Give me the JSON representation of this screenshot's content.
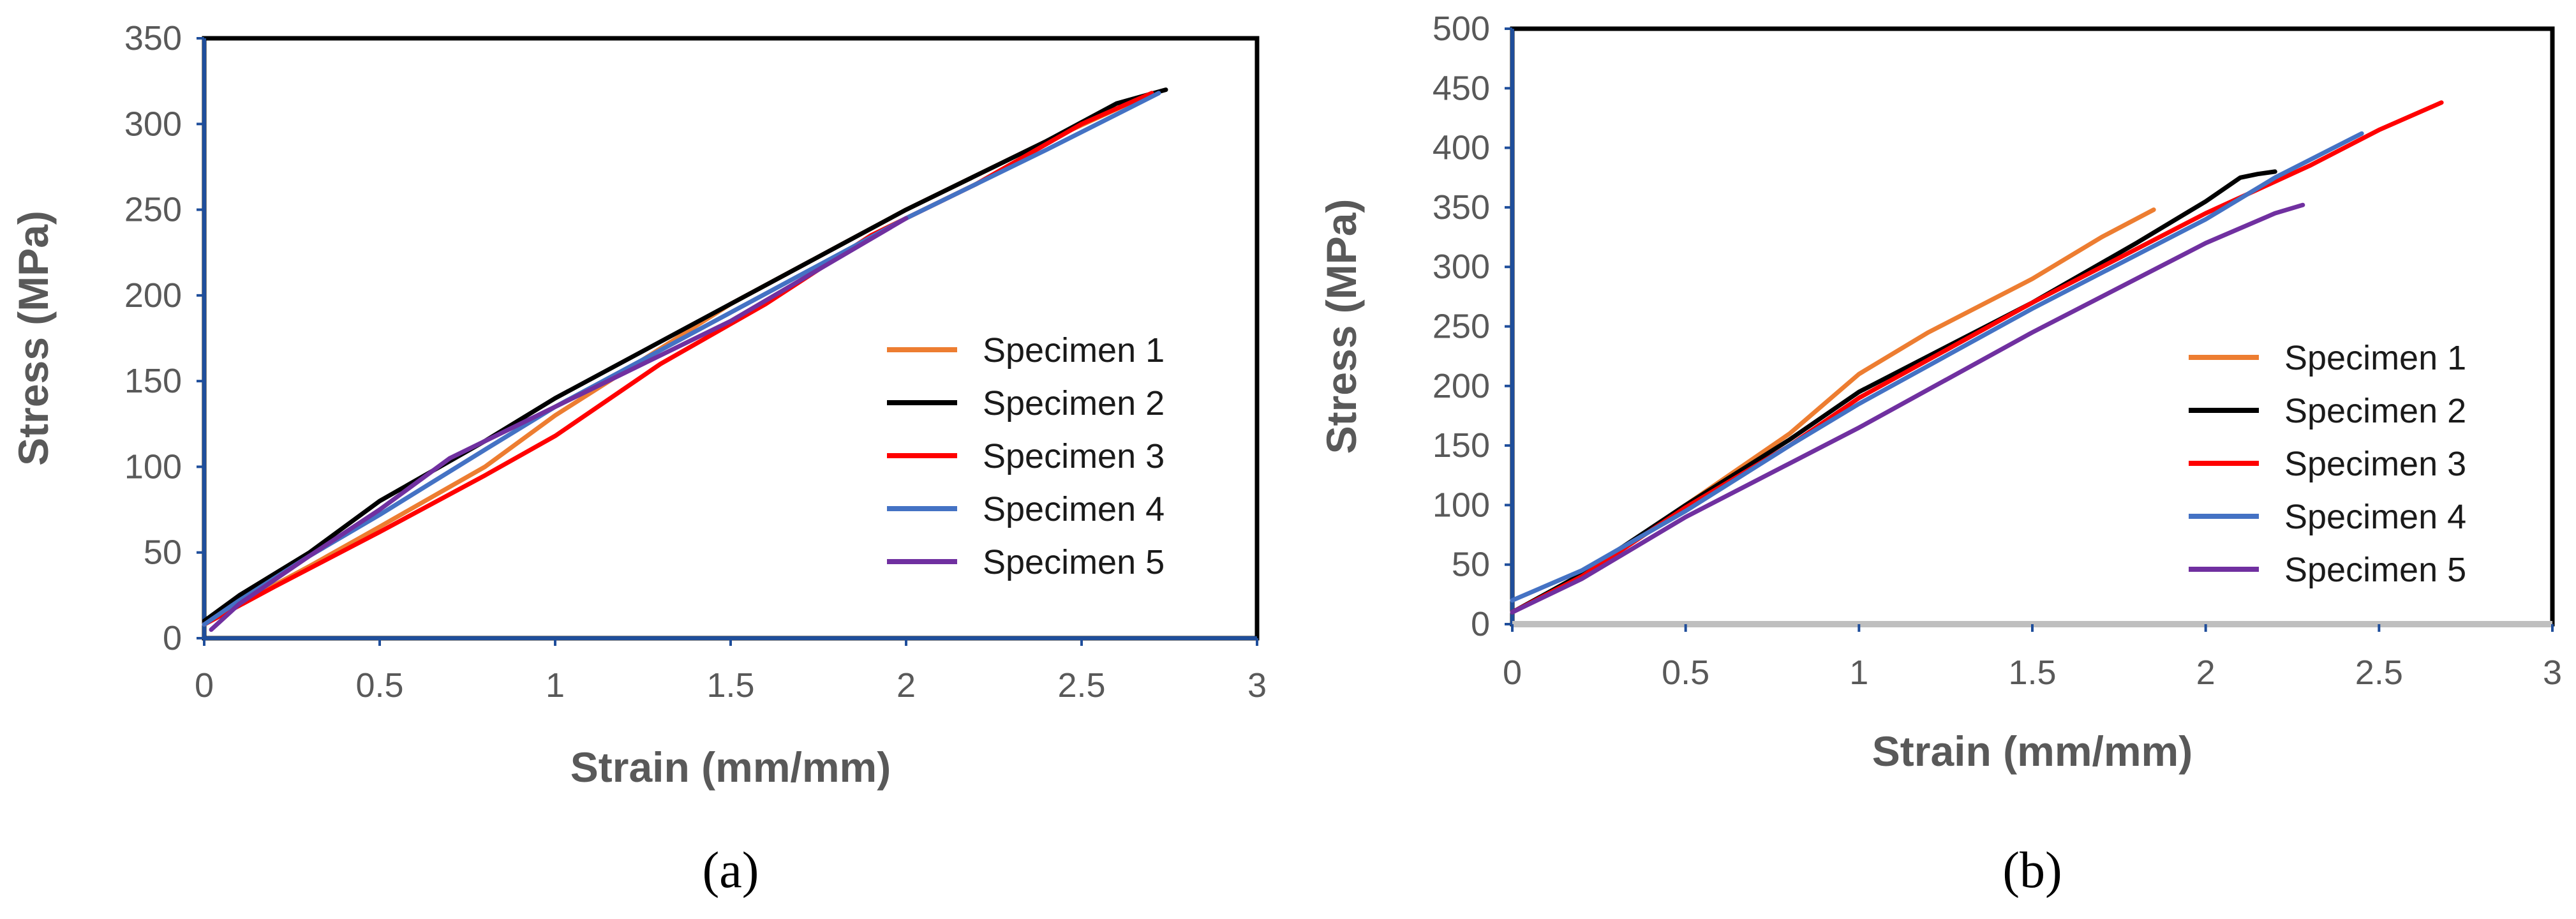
{
  "chart_data": [
    {
      "id": "a",
      "type": "line",
      "caption": "(a)",
      "xlabel": "Strain (mm/mm)",
      "ylabel": "Stress (MPa)",
      "xlim": [
        0,
        3
      ],
      "ylim": [
        0,
        350
      ],
      "xticks": [
        "0",
        "0.5",
        "1",
        "1.5",
        "2",
        "2.5",
        "3"
      ],
      "yticks": [
        "0",
        "50",
        "100",
        "150",
        "200",
        "250",
        "300",
        "350"
      ],
      "legend_position": "right",
      "series": [
        {
          "name": "Specimen 1",
          "color": "#ED7D31",
          "x": [
            0,
            0.1,
            0.3,
            0.5,
            0.8,
            1.0,
            1.5,
            2.0,
            2.4,
            2.7
          ],
          "y": [
            10,
            20,
            42,
            65,
            100,
            130,
            195,
            250,
            290,
            318
          ]
        },
        {
          "name": "Specimen 2",
          "color": "#000000",
          "x": [
            0,
            0.1,
            0.3,
            0.5,
            0.8,
            1.0,
            1.5,
            2.0,
            2.4,
            2.6,
            2.74
          ],
          "y": [
            10,
            25,
            50,
            80,
            115,
            140,
            195,
            250,
            290,
            312,
            320
          ]
        },
        {
          "name": "Specimen 3",
          "color": "#FF0000",
          "x": [
            0,
            0.2,
            0.5,
            0.8,
            1.0,
            1.3,
            1.6,
            1.9,
            2.2,
            2.5,
            2.7
          ],
          "y": [
            8,
            30,
            62,
            95,
            118,
            160,
            195,
            235,
            265,
            300,
            318
          ]
        },
        {
          "name": "Specimen 4",
          "color": "#4472C4",
          "x": [
            0,
            0.1,
            0.3,
            0.5,
            0.8,
            1.0,
            1.5,
            2.0,
            2.4,
            2.72
          ],
          "y": [
            8,
            22,
            48,
            72,
            110,
            135,
            190,
            245,
            285,
            318
          ]
        },
        {
          "name": "Specimen 5",
          "color": "#7030A0",
          "x": [
            0.02,
            0.1,
            0.3,
            0.5,
            0.7,
            0.9,
            1.2,
            1.5,
            2.0
          ],
          "y": [
            5,
            20,
            48,
            75,
            105,
            125,
            155,
            185,
            245
          ]
        }
      ]
    },
    {
      "id": "b",
      "type": "line",
      "caption": "(b)",
      "xlabel": "Strain (mm/mm)",
      "ylabel": "Stress (MPa)",
      "xlim": [
        0,
        3
      ],
      "ylim": [
        0,
        500
      ],
      "xticks": [
        "0",
        "0.5",
        "1",
        "1.5",
        "2",
        "2.5",
        "3"
      ],
      "yticks": [
        "0",
        "50",
        "100",
        "150",
        "200",
        "250",
        "300",
        "350",
        "400",
        "450",
        "500"
      ],
      "legend_position": "right",
      "series": [
        {
          "name": "Specimen 1",
          "color": "#ED7D31",
          "x": [
            0,
            0.2,
            0.5,
            0.8,
            1.0,
            1.2,
            1.5,
            1.7,
            1.85
          ],
          "y": [
            10,
            40,
            100,
            160,
            210,
            245,
            290,
            325,
            348
          ]
        },
        {
          "name": "Specimen 2",
          "color": "#000000",
          "x": [
            0,
            0.2,
            0.5,
            0.8,
            1.0,
            1.2,
            1.5,
            1.8,
            2.0,
            2.1,
            2.15,
            2.2
          ],
          "y": [
            10,
            42,
            100,
            155,
            195,
            225,
            270,
            320,
            355,
            375,
            378,
            380
          ]
        },
        {
          "name": "Specimen 3",
          "color": "#FF0000",
          "x": [
            0,
            0.2,
            0.5,
            0.8,
            1.0,
            1.5,
            2.0,
            2.3,
            2.5,
            2.68
          ],
          "y": [
            10,
            40,
            98,
            150,
            190,
            270,
            345,
            385,
            415,
            438
          ]
        },
        {
          "name": "Specimen 4",
          "color": "#4472C4",
          "x": [
            0,
            0.2,
            0.5,
            0.8,
            1.0,
            1.5,
            2.0,
            2.2,
            2.45
          ],
          "y": [
            20,
            45,
            95,
            150,
            185,
            265,
            340,
            375,
            412
          ]
        },
        {
          "name": "Specimen 5",
          "color": "#7030A0",
          "x": [
            0,
            0.2,
            0.5,
            0.8,
            1.0,
            1.5,
            1.8,
            2.0,
            2.2,
            2.28
          ],
          "y": [
            10,
            38,
            90,
            135,
            165,
            245,
            290,
            320,
            345,
            352
          ]
        }
      ]
    }
  ]
}
